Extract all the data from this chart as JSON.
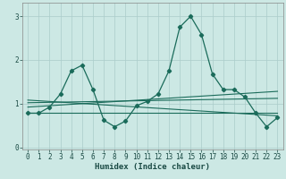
{
  "title": "",
  "xlabel": "Humidex (Indice chaleur)",
  "xlim": [
    -0.5,
    23.5
  ],
  "ylim": [
    -0.05,
    3.3
  ],
  "xticks": [
    0,
    1,
    2,
    3,
    4,
    5,
    6,
    7,
    8,
    9,
    10,
    11,
    12,
    13,
    14,
    15,
    16,
    17,
    18,
    19,
    20,
    21,
    22,
    23
  ],
  "yticks": [
    0,
    1,
    2,
    3
  ],
  "bg_color": "#cce8e4",
  "grid_color": "#aaccca",
  "line_color": "#1a6b5a",
  "main_series": {
    "x": [
      0,
      1,
      2,
      3,
      4,
      5,
      6,
      7,
      8,
      9,
      10,
      11,
      12,
      13,
      14,
      15,
      16,
      17,
      18,
      19,
      20,
      21,
      22,
      23
    ],
    "y": [
      0.78,
      0.78,
      0.92,
      1.22,
      1.75,
      1.88,
      1.32,
      0.62,
      0.47,
      0.6,
      0.95,
      1.05,
      1.22,
      1.75,
      2.75,
      3.0,
      2.58,
      1.68,
      1.32,
      1.32,
      1.15,
      0.78,
      0.47,
      0.68
    ]
  },
  "trend_lines": [
    {
      "x": [
        0,
        23
      ],
      "y": [
        0.78,
        0.78
      ]
    },
    {
      "x": [
        0,
        23
      ],
      "y": [
        0.92,
        1.28
      ]
    },
    {
      "x": [
        0,
        23
      ],
      "y": [
        1.02,
        1.12
      ]
    },
    {
      "x": [
        0,
        23
      ],
      "y": [
        1.08,
        0.72
      ]
    }
  ]
}
